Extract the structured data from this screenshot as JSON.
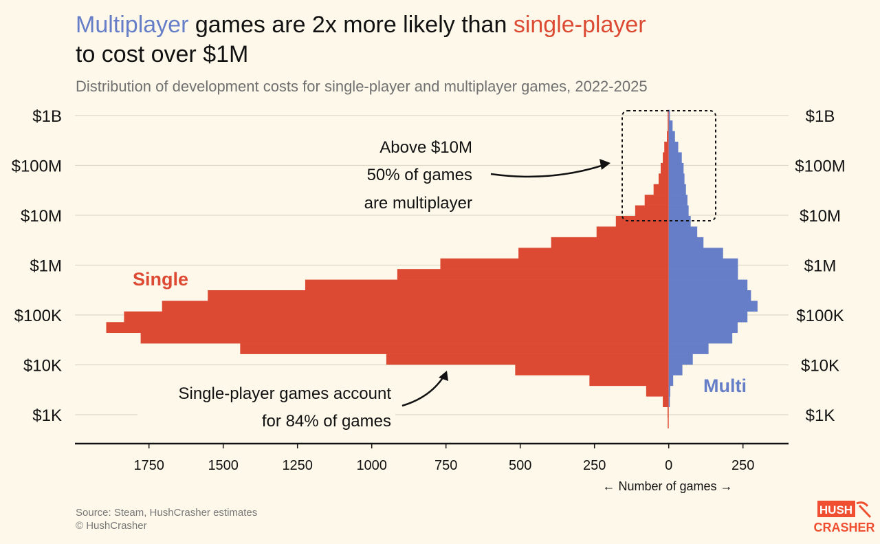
{
  "header": {
    "title_part1": "Multiplayer",
    "title_part2": " games are 2x more likely than ",
    "title_part3": "single-player",
    "title_line2": "to cost over $1M",
    "subtitle": "Distribution of development costs for single-player and multiplayer games, 2022-2025"
  },
  "footer": {
    "source": "Source: Steam, HushCrasher estimates",
    "copyright": "© HushCrasher",
    "logo_text_top": "HUSH",
    "logo_text_bottom": "CRASHER"
  },
  "colors": {
    "single": "#dd4a33",
    "multi": "#667ec8",
    "background": "#fdf8ea",
    "brand": "#f04e30"
  },
  "chart_data": {
    "type": "bar",
    "orientation": "horizontal back-to-back histogram",
    "xlabel": "← Number of games →",
    "x_ticks_left": [
      "1750",
      "1500",
      "1250",
      "1000",
      "750",
      "500",
      "250",
      "0"
    ],
    "x_ticks_right": [
      "250"
    ],
    "x_tick_values_left": [
      1750,
      1500,
      1250,
      1000,
      750,
      500,
      250,
      0
    ],
    "x_tick_values_right": [
      250
    ],
    "xlim_left": [
      0,
      2000
    ],
    "xlim_right": [
      0,
      400
    ],
    "y_scale": "log",
    "y_ticks": [
      "$1B",
      "$100M",
      "$10M",
      "$1M",
      "$100K",
      "$10K",
      "$1K"
    ],
    "y_tick_values": [
      1000000000,
      100000000,
      10000000,
      1000000,
      100000,
      10000,
      1000
    ],
    "y_range_usd": [
      537,
      1300000000
    ],
    "bin_count": 30,
    "grid": true,
    "series": [
      {
        "name": "Single",
        "side": "left",
        "values": [
          3,
          4,
          20,
          76,
          267,
          517,
          951,
          1443,
          1778,
          1894,
          1834,
          1706,
          1552,
          1224,
          914,
          769,
          506,
          396,
          243,
          178,
          113,
          81,
          51,
          34,
          27,
          20,
          15,
          6,
          2,
          1
        ]
      },
      {
        "name": "Multi",
        "side": "right",
        "values": [
          0,
          0,
          1,
          5,
          15,
          46,
          81,
          134,
          214,
          232,
          265,
          299,
          277,
          265,
          233,
          233,
          183,
          117,
          96,
          74,
          67,
          63,
          58,
          53,
          50,
          44,
          32,
          21,
          13,
          4
        ]
      }
    ],
    "annotations": [
      {
        "lines": [
          "Above $10M",
          "50% of games",
          "are multiplayer"
        ]
      },
      {
        "lines": [
          "Single-player games account",
          "for 84% of games"
        ]
      }
    ]
  }
}
